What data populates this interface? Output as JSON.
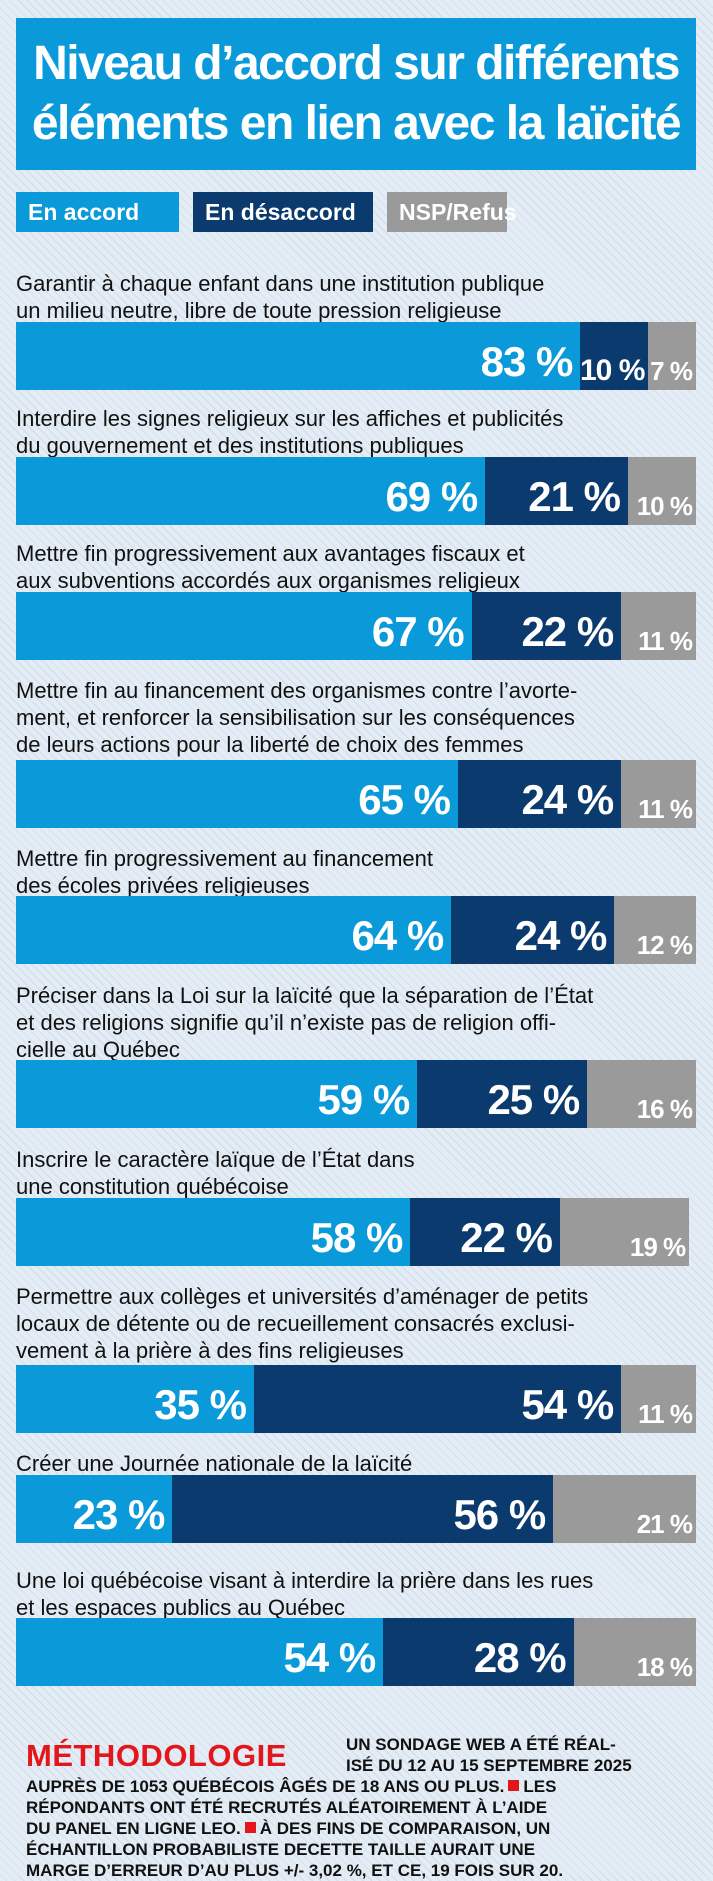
{
  "title": {
    "line1": "Niveau d’accord sur différents",
    "line2": "éléments en lien avec la laïcité"
  },
  "legend": {
    "agree": "En accord",
    "disagree": "En désaccord",
    "nsp": "NSP/Refus"
  },
  "colors": {
    "agree": "#0a9ad9",
    "disagree": "#0b3a6e",
    "nsp": "#9a9a9a",
    "methodology_title": "#e3161b"
  },
  "chart_data": {
    "type": "bar",
    "orientation": "horizontal-stacked",
    "value_suffix": " %",
    "series": [
      {
        "name": "En accord",
        "values": [
          83,
          69,
          67,
          65,
          64,
          59,
          58,
          35,
          23,
          54
        ]
      },
      {
        "name": "En désaccord",
        "values": [
          10,
          21,
          22,
          24,
          24,
          25,
          22,
          54,
          56,
          28
        ]
      },
      {
        "name": "NSP/Refus",
        "values": [
          7,
          10,
          11,
          11,
          12,
          16,
          19,
          11,
          21,
          18
        ]
      }
    ],
    "categories": [
      [
        "Garantir à chaque enfant dans une institution publique",
        "un milieu neutre, libre de toute pression religieuse"
      ],
      [
        "Interdire les signes religieux sur les affiches et publicités",
        "du gouvernement et des institutions publiques"
      ],
      [
        "Mettre fin progressivement aux avantages fiscaux et",
        "aux subventions accordés aux organismes religieux"
      ],
      [
        "Mettre fin au financement des organismes contre l’avorte-",
        "ment, et renforcer la sensibilisation sur les conséquences",
        "de leurs actions pour la liberté de choix des femmes"
      ],
      [
        "Mettre fin progressivement au financement",
        "des écoles privées religieuses"
      ],
      [
        "Préciser dans la Loi sur la laïcité que la séparation de l’État",
        "et des religions signifie qu’il n’existe pas de religion offi-",
        "cielle au Québec"
      ],
      [
        "Inscrire le caractère laïque de l’État dans",
        "une constitution québécoise"
      ],
      [
        "Permettre aux collèges et universités d’aménager de petits",
        "locaux de détente ou de recueillement consacrés exclusi-",
        "vement à la prière à des fins religieuses"
      ],
      [
        "Créer une Journée nationale de la laïcité"
      ],
      [
        "Une loi québécoise visant à interdire la prière dans les rues",
        "et les espaces publics au Québec"
      ]
    ]
  },
  "methodology": {
    "title": "MÉTHODOLOGIE",
    "intro_lines": [
      "UN SONDAGE WEB A ÉTÉ RÉAL-",
      "ISÉ DU 12 AU 15 SEPTEMBRE 2025"
    ],
    "body_lines": [
      [
        "AUPRÈS DE 1053 QUÉBÉCOIS ÂGÉS DE 18 ANS OU PLUS.",
        "LES"
      ],
      [
        "RÉPONDANTS ONT ÉTÉ RECRUTÉS ALÉATOIREMENT À L’AIDE"
      ],
      [
        "DU PANEL EN LIGNE LEO.",
        "À DES FINS DE COMPARAISON, UN"
      ],
      [
        "ÉCHANTILLON PROBABILISTE DECETTE TAILLE AURAIT UNE"
      ],
      [
        "MARGE D’ERREUR D’AU PLUS +/- 3,02 %, ET CE, 19 FOIS SUR 20."
      ]
    ]
  }
}
